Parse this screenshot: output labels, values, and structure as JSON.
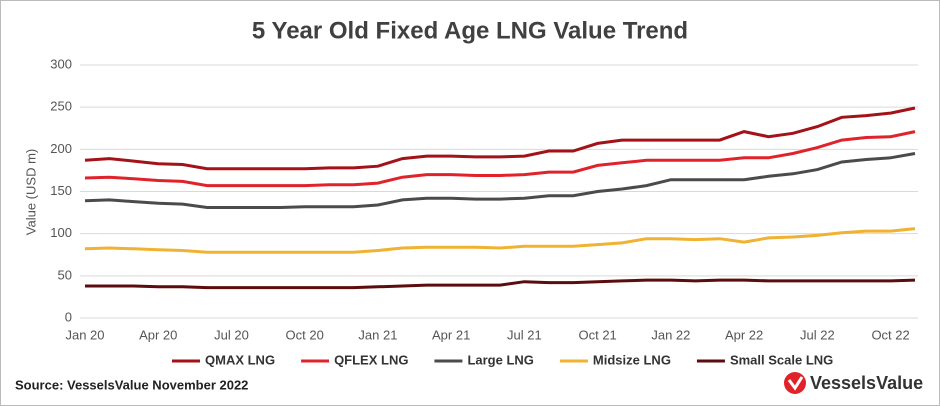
{
  "chart_data": {
    "type": "line",
    "title": "5 Year Old Fixed Age LNG Value Trend",
    "y_label": "Value (USD m)",
    "source": "Source: VesselsValue November 2022",
    "logo": "VesselsValue",
    "categories": [
      "Jan 20",
      null,
      null,
      "Apr 20",
      null,
      null,
      "Jul 20",
      null,
      null,
      "Oct 20",
      null,
      null,
      "Jan 21",
      null,
      null,
      "Apr 21",
      null,
      null,
      "Jul 21",
      null,
      null,
      "Oct 21",
      null,
      null,
      "Jan 22",
      null,
      null,
      "Apr 22",
      null,
      null,
      "Jul 22",
      null,
      null,
      "Oct 22",
      null
    ],
    "series": [
      {
        "name": "QMAX LNG",
        "color": "#a31218",
        "values": [
          187,
          189,
          186,
          183,
          182,
          177,
          177,
          177,
          177,
          177,
          178,
          178,
          180,
          189,
          192,
          192,
          191,
          191,
          192,
          198,
          198,
          207,
          211,
          211,
          211,
          211,
          211,
          221,
          215,
          219,
          227,
          238,
          240,
          243,
          249
        ]
      },
      {
        "name": "QFLEX LNG",
        "color": "#e0232b",
        "values": [
          166,
          167,
          165,
          163,
          162,
          157,
          157,
          157,
          157,
          157,
          158,
          158,
          160,
          167,
          170,
          170,
          169,
          169,
          170,
          173,
          173,
          181,
          184,
          187,
          187,
          187,
          187,
          190,
          190,
          195,
          202,
          211,
          214,
          215,
          221
        ]
      },
      {
        "name": "Large LNG",
        "color": "#4b4b4b",
        "values": [
          139,
          140,
          138,
          136,
          135,
          131,
          131,
          131,
          131,
          132,
          132,
          132,
          134,
          140,
          142,
          142,
          141,
          141,
          142,
          145,
          145,
          150,
          153,
          157,
          164,
          164,
          164,
          164,
          168,
          171,
          176,
          185,
          188,
          190,
          195
        ]
      },
      {
        "name": "Midsize LNG",
        "color": "#f0b232",
        "values": [
          82,
          83,
          82,
          81,
          80,
          78,
          78,
          78,
          78,
          78,
          78,
          78,
          80,
          83,
          84,
          84,
          84,
          83,
          85,
          85,
          85,
          87,
          89,
          94,
          94,
          93,
          94,
          90,
          95,
          96,
          98,
          101,
          103,
          103,
          106
        ]
      },
      {
        "name": "Small Scale LNG",
        "color": "#5c0c0c",
        "values": [
          38,
          38,
          38,
          37,
          37,
          36,
          36,
          36,
          36,
          36,
          36,
          36,
          37,
          38,
          39,
          39,
          39,
          39,
          43,
          42,
          42,
          43,
          44,
          45,
          45,
          44,
          45,
          45,
          44,
          44,
          44,
          44,
          44,
          44,
          45
        ]
      }
    ],
    "ylim": [
      0,
      300
    ],
    "yticks": [
      0,
      50,
      100,
      150,
      200,
      250,
      300
    ],
    "grid": true,
    "legend": "bottom"
  }
}
